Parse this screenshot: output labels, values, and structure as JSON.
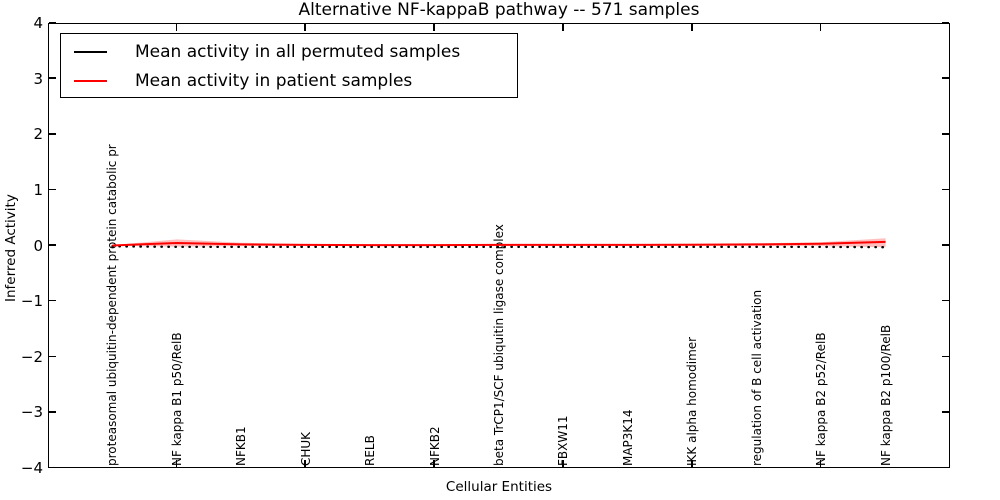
{
  "title": "Alternative NF-kappaB pathway -- 571 samples",
  "legend": {
    "entries": [
      {
        "label": "Mean activity in all permuted samples",
        "color": "#000000"
      },
      {
        "label": "Mean activity in patient samples",
        "color": "#ff0000"
      }
    ]
  },
  "chart_data": {
    "type": "line",
    "title": "Alternative NF-kappaB pathway -- 571 samples",
    "xlabel": "Cellular Entities",
    "ylabel": "Inferred Activity",
    "xlim": [
      0,
      14
    ],
    "ylim": [
      -4,
      4
    ],
    "grid": false,
    "legend_position": "upper left",
    "ytick_values": [
      4,
      3,
      2,
      1,
      0,
      -1,
      -2,
      -3,
      -4
    ],
    "ytick_labels": [
      "4",
      "3",
      "2",
      "1",
      "0",
      "−1",
      "−2",
      "−3",
      "−4"
    ],
    "xtick_values": [
      2,
      4,
      6,
      8,
      10,
      12
    ],
    "categories": [
      "proteasomal ubiquitin-dependent protein catabolic pr",
      "NF kappa B1 p50/RelB",
      "NFKB1",
      "CHUK",
      "RELB",
      "NFKB2",
      "beta TrCP1/SCF ubiquitin ligase complex",
      "FBXW11",
      "MAP3K14",
      "IKK alpha homodimer",
      "regulation of B cell activation",
      "NF kappa B2 p52/RelB",
      "NF kappa B2 p100/RelB"
    ],
    "x": [
      1,
      2,
      3,
      4,
      5,
      6,
      7,
      8,
      9,
      10,
      11,
      12,
      13
    ],
    "series": [
      {
        "name": "Mean activity in all permuted samples",
        "color": "#000000",
        "style": "dotted",
        "values": [
          -0.015,
          -0.025,
          -0.025,
          -0.025,
          -0.025,
          -0.025,
          -0.025,
          -0.025,
          -0.025,
          -0.025,
          -0.025,
          -0.025,
          -0.03
        ]
      },
      {
        "name": "Mean activity in patient samples",
        "color": "#ff0000",
        "style": "solid",
        "values": [
          0.0,
          0.045,
          0.02,
          0.01,
          0.008,
          0.008,
          0.01,
          0.01,
          0.01,
          0.012,
          0.02,
          0.03,
          0.065
        ]
      }
    ],
    "band": {
      "name": "patient-samples-spread",
      "color": "rgba(255,0,0,0.25)",
      "upper": [
        0.005,
        0.11,
        0.05,
        0.025,
        0.02,
        0.02,
        0.025,
        0.025,
        0.025,
        0.03,
        0.04,
        0.06,
        0.13
      ],
      "lower": [
        -0.005,
        -0.02,
        -0.01,
        -0.005,
        -0.005,
        -0.005,
        -0.005,
        -0.005,
        -0.005,
        -0.005,
        -0.01,
        -0.01,
        -0.03
      ]
    }
  }
}
